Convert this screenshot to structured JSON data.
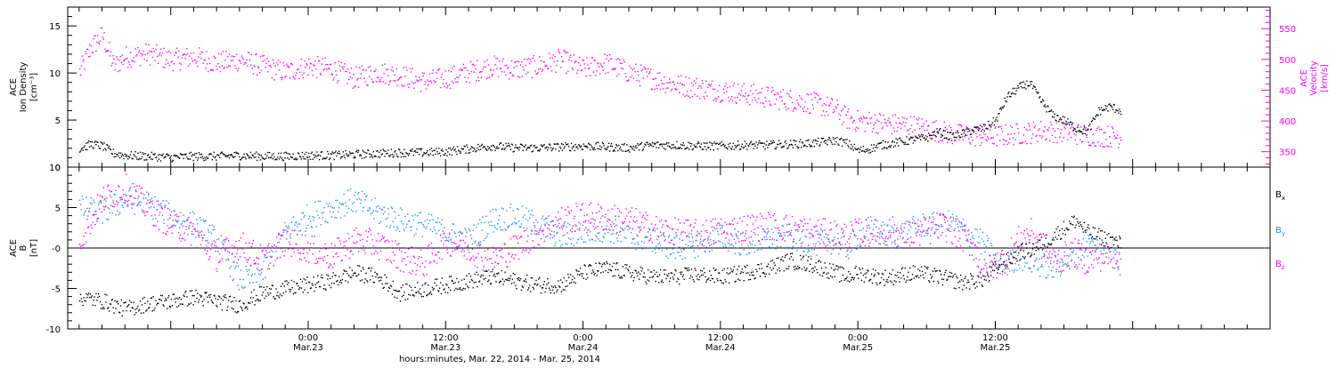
{
  "chart_data": [
    {
      "type": "scatter",
      "panel": "top",
      "ylabel_left": [
        "ACE",
        "Ion Density",
        "[cm⁻³]"
      ],
      "ylabel_right": [
        "ACE",
        "Velocity",
        "[km/s]"
      ],
      "yticks_left": [
        "0",
        "5",
        "10",
        "15"
      ],
      "yticks_right": [
        "350",
        "400",
        "450",
        "500",
        "550"
      ],
      "ylim_left": [
        0,
        17
      ],
      "ylim_right": [
        325,
        585
      ],
      "colors": {
        "density": "#000000",
        "velocity": "#ff00ff"
      },
      "series": [
        {
          "key": "density",
          "axis": "left",
          "color": "#000000",
          "x_hours": [
            -20,
            -19,
            -18,
            -17,
            -16,
            -14,
            -12,
            -10,
            -8,
            -6,
            -4,
            -2,
            0,
            2,
            4,
            6,
            8,
            10,
            12,
            14,
            16,
            18,
            20,
            22,
            24,
            26,
            28,
            30,
            32,
            34,
            36,
            38,
            40,
            42,
            44,
            46,
            47,
            48,
            49,
            50,
            51,
            52,
            53,
            54,
            55,
            56,
            57,
            58,
            59,
            60,
            61,
            62,
            63,
            64,
            65,
            66,
            67,
            68,
            69,
            70,
            71
          ],
          "values": [
            2.0,
            2.5,
            2.3,
            1.5,
            1.3,
            1.2,
            1.1,
            1.2,
            1.2,
            1.3,
            1.2,
            1.2,
            1.3,
            1.3,
            1.4,
            1.5,
            1.6,
            1.6,
            1.7,
            2.0,
            2.3,
            2.1,
            2.1,
            2.2,
            2.3,
            2.2,
            2.1,
            2.4,
            2.4,
            2.3,
            2.3,
            2.4,
            2.4,
            2.5,
            2.6,
            2.9,
            2.6,
            1.8,
            2.0,
            2.4,
            2.6,
            2.8,
            3.0,
            3.2,
            3.8,
            3.3,
            3.6,
            4.0,
            4.2,
            5.0,
            7.5,
            8.5,
            9.0,
            7.0,
            5.5,
            5.0,
            4.2,
            3.8,
            6.0,
            6.5,
            6.0
          ]
        },
        {
          "key": "velocity",
          "axis": "right",
          "color": "#ff00ff",
          "x_hours": [
            -20,
            -19,
            -18,
            -17,
            -16,
            -14,
            -12,
            -10,
            -8,
            -6,
            -4,
            -2,
            0,
            2,
            4,
            6,
            8,
            10,
            12,
            14,
            16,
            18,
            20,
            22,
            24,
            26,
            28,
            30,
            32,
            34,
            36,
            38,
            40,
            42,
            44,
            46,
            47,
            48,
            49,
            50,
            51,
            52,
            53,
            54,
            55,
            56,
            57,
            58,
            59,
            60,
            61,
            62,
            63,
            64,
            65,
            66,
            67,
            68,
            69,
            70,
            71
          ],
          "values": [
            480,
            520,
            540,
            490,
            505,
            510,
            500,
            505,
            495,
            500,
            490,
            480,
            490,
            485,
            470,
            480,
            475,
            465,
            470,
            480,
            490,
            485,
            490,
            500,
            485,
            495,
            480,
            470,
            460,
            455,
            450,
            445,
            440,
            435,
            430,
            420,
            405,
            400,
            400,
            398,
            395,
            395,
            392,
            388,
            385,
            380,
            378,
            377,
            376,
            376,
            378,
            380,
            382,
            385,
            384,
            383,
            380,
            378,
            377,
            376,
            375
          ]
        }
      ]
    },
    {
      "type": "scatter",
      "panel": "bottom",
      "ylabel": [
        "ACE",
        "B",
        "[nT]"
      ],
      "yticks": [
        "-10",
        "-5",
        "-0",
        "5",
        "10"
      ],
      "ylim": [
        -10,
        10
      ],
      "zero_line": true,
      "legend": [
        "Bₓ",
        "Bᵧ",
        "B_z"
      ],
      "legend_display": [
        {
          "base": "B",
          "sub": "x"
        },
        {
          "base": "B",
          "sub": "y"
        },
        {
          "base": "B",
          "sub": "z"
        }
      ],
      "legend_placement": "right",
      "colors": {
        "bx": "#000000",
        "by": "#1e90ff",
        "bz": "#ff00ff"
      },
      "series": [
        {
          "key": "bx",
          "color": "#000000",
          "x_hours": [
            -20,
            -18,
            -16,
            -14,
            -12,
            -10,
            -8,
            -6,
            -4,
            -2,
            0,
            2,
            4,
            6,
            8,
            10,
            12,
            14,
            16,
            18,
            20,
            22,
            24,
            26,
            28,
            30,
            32,
            34,
            36,
            38,
            40,
            42,
            44,
            46,
            47,
            48,
            49,
            50,
            51,
            52,
            53,
            54,
            55,
            56,
            57,
            58,
            59,
            60,
            61,
            62,
            63,
            64,
            65,
            66,
            67,
            68,
            69,
            70,
            71
          ],
          "values": [
            -6.0,
            -6.5,
            -7.5,
            -6.8,
            -6.5,
            -6.0,
            -6.5,
            -7.0,
            -5.5,
            -5.0,
            -4.5,
            -4.0,
            -3.0,
            -3.5,
            -5.5,
            -5.0,
            -4.5,
            -4.0,
            -3.5,
            -4.0,
            -4.5,
            -4.5,
            -3.0,
            -2.5,
            -3.0,
            -3.5,
            -3.5,
            -3.2,
            -3.5,
            -3.0,
            -2.5,
            -1.5,
            -2.0,
            -3.0,
            -3.5,
            -3.0,
            -3.3,
            -3.6,
            -3.5,
            -3.2,
            -3.0,
            -3.2,
            -3.5,
            -3.8,
            -4.2,
            -4.0,
            -3.8,
            -2.5,
            -1.5,
            -0.5,
            -0.2,
            0.5,
            1.5,
            2.5,
            3.5,
            2.0,
            1.5,
            1.0,
            0.5
          ]
        },
        {
          "key": "by",
          "color": "#1e90ff",
          "x_hours": [
            -20,
            -18,
            -16,
            -14,
            -12,
            -10,
            -8,
            -6,
            -4,
            -2,
            0,
            2,
            4,
            6,
            8,
            10,
            12,
            14,
            16,
            18,
            20,
            22,
            24,
            26,
            28,
            30,
            32,
            34,
            36,
            38,
            40,
            42,
            44,
            46,
            47,
            48,
            49,
            50,
            51,
            52,
            53,
            54,
            55,
            56,
            57,
            58,
            59,
            60,
            61,
            62,
            63,
            64,
            65,
            66,
            67,
            68,
            69,
            70,
            71
          ],
          "values": [
            5.0,
            4.5,
            6.0,
            5.5,
            4.0,
            3.0,
            1.0,
            -4.0,
            -3.0,
            2.0,
            4.0,
            5.0,
            6.0,
            4.5,
            3.5,
            3.0,
            2.0,
            1.0,
            3.5,
            4.0,
            3.0,
            1.5,
            2.0,
            2.5,
            1.5,
            1.0,
            0.0,
            0.5,
            1.5,
            0.5,
            1.0,
            1.5,
            0.5,
            1.0,
            0.0,
            1.5,
            2.5,
            1.8,
            1.5,
            2.0,
            2.5,
            3.0,
            2.8,
            3.2,
            2.5,
            1.5,
            0.5,
            -1.5,
            -2.0,
            -1.0,
            -1.5,
            -2.0,
            -2.5,
            -1.5,
            -1.0,
            0.5,
            0.0,
            0.5,
            -2.5
          ]
        },
        {
          "key": "bz",
          "color": "#ff00ff",
          "x_hours": [
            -20,
            -18,
            -16,
            -14,
            -12,
            -10,
            -8,
            -6,
            -4,
            -2,
            0,
            2,
            4,
            6,
            8,
            10,
            12,
            14,
            16,
            18,
            20,
            22,
            24,
            26,
            28,
            30,
            32,
            34,
            36,
            38,
            40,
            42,
            44,
            46,
            47,
            48,
            49,
            50,
            51,
            52,
            53,
            54,
            55,
            56,
            57,
            58,
            59,
            60,
            61,
            62,
            63,
            64,
            65,
            66,
            67,
            68,
            69,
            70,
            71
          ],
          "values": [
            1.0,
            6.0,
            7.5,
            5.0,
            3.0,
            2.0,
            -1.0,
            0.5,
            -1.5,
            1.0,
            0.0,
            -1.0,
            1.0,
            0.5,
            -1.0,
            -2.0,
            1.0,
            0.0,
            -1.5,
            0.0,
            2.0,
            3.5,
            4.0,
            3.8,
            3.5,
            2.5,
            2.0,
            1.8,
            2.2,
            2.5,
            2.8,
            2.5,
            2.0,
            1.8,
            1.5,
            2.0,
            1.8,
            2.0,
            2.2,
            1.5,
            2.0,
            2.0,
            2.8,
            2.5,
            1.5,
            0.5,
            -3.0,
            -2.0,
            -1.0,
            1.0,
            2.0,
            0.5,
            -1.5,
            -1.0,
            -0.5,
            -1.5,
            -1.0,
            -1.0,
            -0.5
          ]
        }
      ]
    }
  ],
  "time_axis": {
    "ticks": [
      {
        "hour": 0,
        "time": "0:00",
        "date": "Mar.23"
      },
      {
        "hour": 12,
        "time": "12:00",
        "date": "Mar.23"
      },
      {
        "hour": 24,
        "time": "0:00",
        "date": "Mar.24"
      },
      {
        "hour": 36,
        "time": "12:00",
        "date": "Mar.24"
      },
      {
        "hour": 48,
        "time": "0:00",
        "date": "Mar.25"
      },
      {
        "hour": 60,
        "time": "12:00",
        "date": "Mar.25"
      }
    ],
    "caption": "hours:minutes, Mar. 22, 2014 - Mar. 25, 2014",
    "xlim_hours": [
      -21,
      84
    ]
  }
}
